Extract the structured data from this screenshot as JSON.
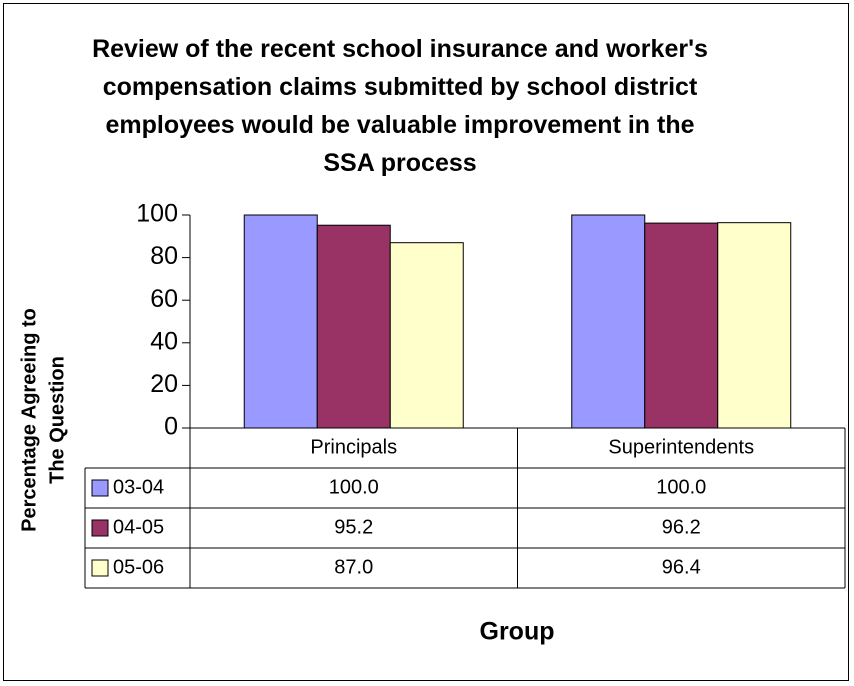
{
  "chart_data": {
    "type": "bar",
    "title": "Review of the recent school insurance and worker's compensation claims submitted by school district employees would be valuable improvement in the SSA process",
    "xlabel": "Group",
    "ylabel_lines": [
      "Percentage Agreeing to",
      "The Question"
    ],
    "categories": [
      "Principals",
      "Superintendents"
    ],
    "ylim": [
      0,
      100
    ],
    "yticks": [
      "0",
      "20",
      "40",
      "60",
      "80",
      "100"
    ],
    "series": [
      {
        "name": "03-04",
        "color": "#9999ff",
        "values": [
          100.0,
          100.0
        ],
        "labels": [
          "100.0",
          "100.0"
        ]
      },
      {
        "name": "04-05",
        "color": "#993366",
        "values": [
          95.2,
          96.2
        ],
        "labels": [
          "95.2",
          "96.2"
        ]
      },
      {
        "name": "05-06",
        "color": "#ffffcc",
        "values": [
          87.0,
          96.4
        ],
        "labels": [
          "87.0",
          "96.4"
        ]
      }
    ],
    "grid": false,
    "legend": "data-table"
  }
}
